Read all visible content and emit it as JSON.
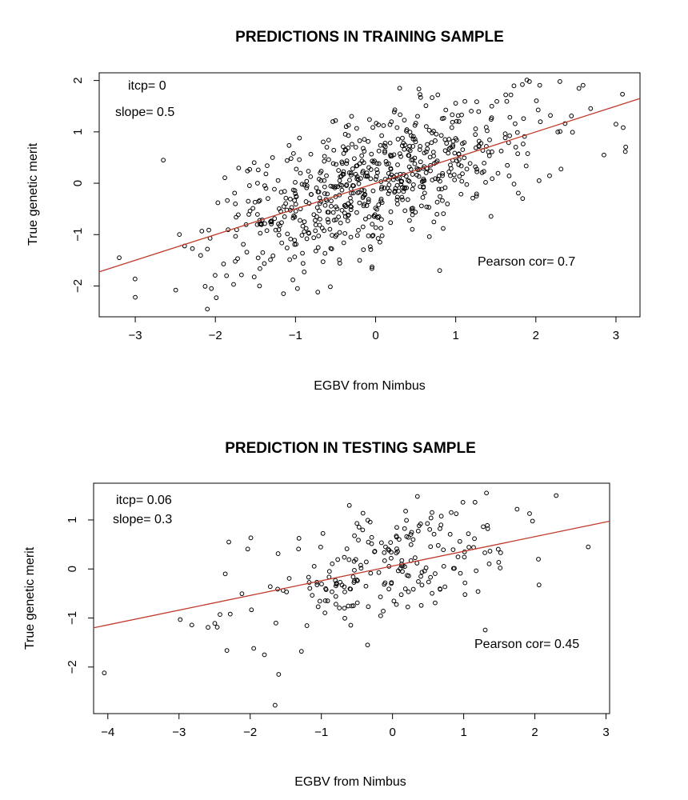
{
  "chart_data": [
    {
      "type": "scatter",
      "title": "PREDICTIONS IN TRAINING SAMPLE",
      "xlabel": "EGBV from Nimbus",
      "ylabel": "True genetic merit",
      "xlim": [
        -3.45,
        3.3
      ],
      "ylim": [
        -2.6,
        2.15
      ],
      "xticks": [
        "−3",
        "−2",
        "−1",
        "0",
        "1",
        "2",
        "3"
      ],
      "xtick_values": [
        -3,
        -2,
        -1,
        0,
        1,
        2,
        3
      ],
      "yticks": [
        "−2",
        "−1",
        "0",
        "1",
        "2"
      ],
      "ytick_values": [
        -2,
        -1,
        0,
        1,
        2
      ],
      "regression_line": {
        "intercept": 0,
        "slope": 0.5,
        "color": "#c0392b"
      },
      "annotations": {
        "itcp": "itcp= 0",
        "slope": "slope= 0.5",
        "cor": "Pearson cor= 0.7"
      },
      "n_points": 700,
      "noise_sd": 0.62,
      "seed": 7,
      "points": [
        {
          "x": -3.0,
          "y": -2.22
        },
        {
          "x": -3.2,
          "y": -1.45
        },
        {
          "x": -2.65,
          "y": 0.45
        },
        {
          "x": -2.1,
          "y": -2.45
        },
        {
          "x": -2.05,
          "y": -2.05
        },
        {
          "x": -1.15,
          "y": -2.15
        },
        {
          "x": 0.8,
          "y": -1.7
        },
        {
          "x": 0.3,
          "y": 1.85
        },
        {
          "x": 2.3,
          "y": 1.98
        },
        {
          "x": 1.92,
          "y": 1.98
        },
        {
          "x": 3.0,
          "y": 1.15
        },
        {
          "x": 2.85,
          "y": 0.55
        },
        {
          "x": -0.5,
          "y": 1.22
        },
        {
          "x": -0.95,
          "y": 0.88
        },
        {
          "x": 1.45,
          "y": 1.5
        }
      ]
    },
    {
      "type": "scatter",
      "title": "PREDICTION IN TESTING SAMPLE",
      "xlabel": "EGBV from Nimbus",
      "ylabel": "True genetic merit",
      "xlim": [
        -4.2,
        3.05
      ],
      "ylim": [
        -2.95,
        1.75
      ],
      "xticks": [
        "−4",
        "−3",
        "−2",
        "−1",
        "0",
        "1",
        "2",
        "3"
      ],
      "xtick_values": [
        -4,
        -3,
        -2,
        -1,
        0,
        1,
        2,
        3
      ],
      "yticks": [
        "−2",
        "−1",
        "0",
        "1"
      ],
      "ytick_values": [
        -2,
        -1,
        0,
        1
      ],
      "regression_line": {
        "intercept": 0.06,
        "slope": 0.3,
        "color": "#c0392b"
      },
      "annotations": {
        "itcp": "itcp= 0.06",
        "slope": "slope= 0.3",
        "cor": "Pearson cor= 0.45"
      },
      "n_points": 230,
      "noise_sd": 0.55,
      "seed": 21,
      "points": [
        {
          "x": -4.05,
          "y": -2.12
        },
        {
          "x": -1.65,
          "y": -2.78
        },
        {
          "x": -1.6,
          "y": -2.15
        },
        {
          "x": -1.8,
          "y": -1.75
        },
        {
          "x": -1.95,
          "y": -1.62
        },
        {
          "x": -1.28,
          "y": -1.68
        },
        {
          "x": -2.35,
          "y": -0.1
        },
        {
          "x": -2.3,
          "y": 0.55
        },
        {
          "x": -2.28,
          "y": -0.92
        },
        {
          "x": 2.75,
          "y": 0.45
        },
        {
          "x": 2.05,
          "y": 0.2
        },
        {
          "x": 1.32,
          "y": 1.55
        },
        {
          "x": 0.35,
          "y": 1.48
        },
        {
          "x": -0.35,
          "y": -1.55
        },
        {
          "x": 1.75,
          "y": 1.22
        }
      ]
    }
  ]
}
